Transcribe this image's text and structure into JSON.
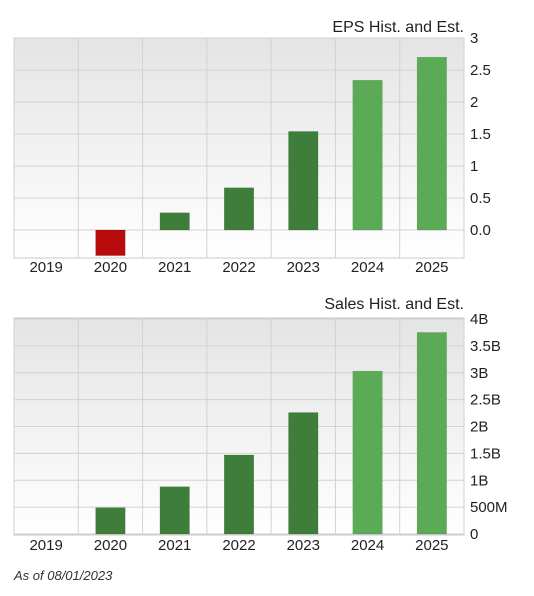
{
  "chart_data": [
    {
      "type": "bar",
      "title": "EPS Hist. and Est.",
      "categories": [
        "2019",
        "2020",
        "2021",
        "2022",
        "2023",
        "2024",
        "2025"
      ],
      "values": [
        null,
        -0.4,
        0.27,
        0.66,
        1.54,
        2.34,
        2.7
      ],
      "bar_kind": [
        "none",
        "negative",
        "historical",
        "historical",
        "historical",
        "estimate",
        "estimate"
      ],
      "ylim": [
        -0.4,
        3.0
      ],
      "yticks": [
        {
          "value": 3,
          "label": "3"
        },
        {
          "value": 2.5,
          "label": "2.5"
        },
        {
          "value": 2,
          "label": "2"
        },
        {
          "value": 1.5,
          "label": "1.5"
        },
        {
          "value": 1,
          "label": "1"
        },
        {
          "value": 0.5,
          "label": "0.5"
        },
        {
          "value": 0,
          "label": "0.0"
        }
      ],
      "grid": true
    },
    {
      "type": "bar",
      "title": "Sales Hist. and Est.",
      "categories": [
        "2019",
        "2020",
        "2021",
        "2022",
        "2023",
        "2024",
        "2025"
      ],
      "values": [
        null,
        0.49,
        0.88,
        1.47,
        2.26,
        3.03,
        3.75
      ],
      "bar_kind": [
        "none",
        "historical",
        "historical",
        "historical",
        "historical",
        "estimate",
        "estimate"
      ],
      "ylim": [
        0,
        4.0
      ],
      "yticks": [
        {
          "value": 4,
          "label": "4B"
        },
        {
          "value": 3.5,
          "label": "3.5B"
        },
        {
          "value": 3,
          "label": "3B"
        },
        {
          "value": 2.5,
          "label": "2.5B"
        },
        {
          "value": 2,
          "label": "2B"
        },
        {
          "value": 1.5,
          "label": "1.5B"
        },
        {
          "value": 1,
          "label": "1B"
        },
        {
          "value": 0.5,
          "label": "500M"
        },
        {
          "value": 0,
          "label": "0"
        }
      ],
      "grid": true
    }
  ],
  "colors": {
    "historical": "#3e7d3a",
    "estimate": "#5aaa56",
    "negative": "#b80c0c",
    "grid": "#d2d2d2",
    "plot_bg_top": "#e4e4e4",
    "plot_bg_bottom": "#ffffff"
  },
  "footnote": "As of 08/01/2023"
}
